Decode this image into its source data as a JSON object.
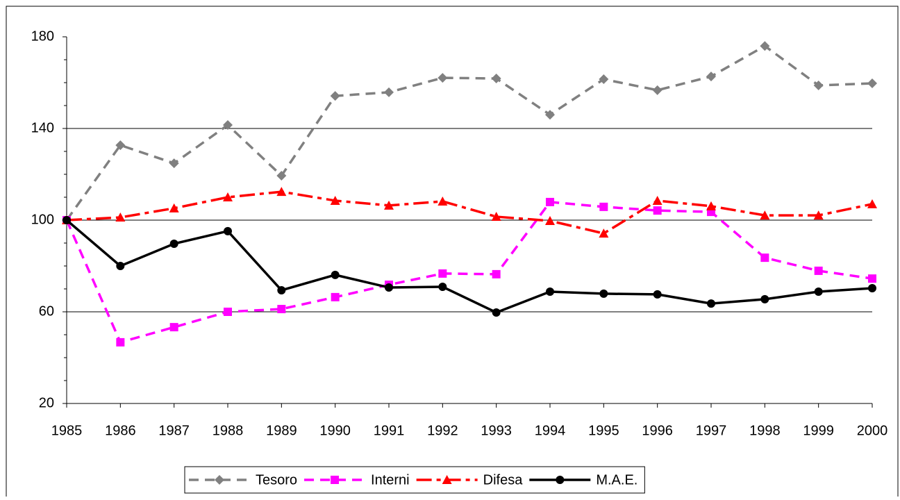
{
  "chart_data": {
    "type": "line",
    "categories": [
      "1985",
      "1986",
      "1987",
      "1988",
      "1989",
      "1990",
      "1991",
      "1992",
      "1993",
      "1994",
      "1995",
      "1996",
      "1997",
      "1998",
      "1999",
      "2000"
    ],
    "series": [
      {
        "name": "Tesoro",
        "color": "#808080",
        "line_style": "dashed",
        "marker": "diamond",
        "values": [
          100,
          132.7,
          124.8,
          141.5,
          119.4,
          154.2,
          155.8,
          162.1,
          161.8,
          146,
          161.5,
          156.7,
          162.7,
          176,
          158.8,
          159.7
        ]
      },
      {
        "name": "Interni",
        "color": "#ff00ff",
        "line_style": "dashed",
        "marker": "square",
        "values": [
          100,
          46.7,
          53.3,
          60,
          61.2,
          66.4,
          71.8,
          76.7,
          76.4,
          107.9,
          105.8,
          104.2,
          103.6,
          83.6,
          77.9,
          74.5
        ]
      },
      {
        "name": "Difesa",
        "color": "#ff0000",
        "line_style": "dashdot",
        "marker": "triangle",
        "values": [
          100,
          101.2,
          105.2,
          110,
          112.4,
          108.5,
          106.4,
          108.2,
          101.5,
          99.7,
          94.2,
          108.5,
          106.1,
          102.1,
          102.1,
          107
        ]
      },
      {
        "name": "M.A.E.",
        "color": "#000000",
        "line_style": "solid",
        "marker": "circle",
        "values": [
          100,
          80,
          89.7,
          95.2,
          69.4,
          76.1,
          70.6,
          70.9,
          59.7,
          68.8,
          67.9,
          67.6,
          63.6,
          65.5,
          68.8,
          70.3
        ]
      }
    ],
    "ylim": [
      20,
      180
    ],
    "yticks": [
      20,
      60,
      100,
      140,
      180
    ],
    "grid": true,
    "legend": "bottom"
  }
}
